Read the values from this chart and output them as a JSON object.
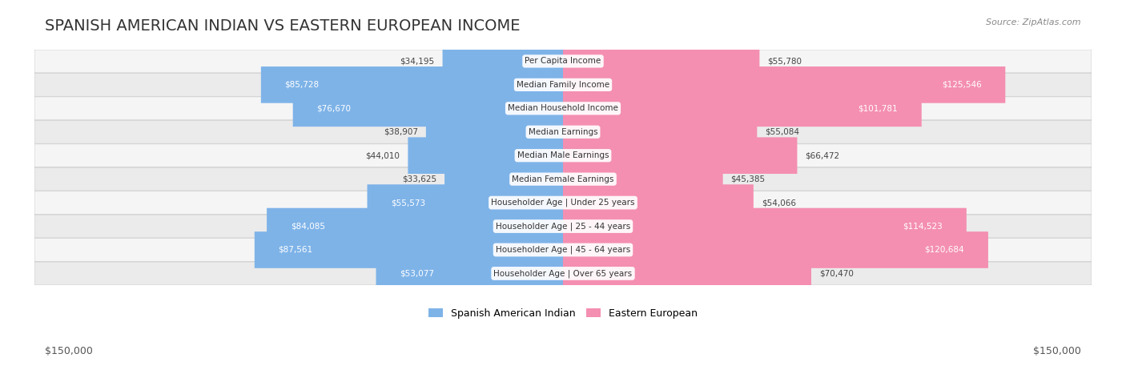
{
  "title": "SPANISH AMERICAN INDIAN VS EASTERN EUROPEAN INCOME",
  "source": "Source: ZipAtlas.com",
  "categories": [
    "Per Capita Income",
    "Median Family Income",
    "Median Household Income",
    "Median Earnings",
    "Median Male Earnings",
    "Median Female Earnings",
    "Householder Age | Under 25 years",
    "Householder Age | 25 - 44 years",
    "Householder Age | 45 - 64 years",
    "Householder Age | Over 65 years"
  ],
  "left_values": [
    34195,
    85728,
    76670,
    38907,
    44010,
    33625,
    55573,
    84085,
    87561,
    53077
  ],
  "right_values": [
    55780,
    125546,
    101781,
    55084,
    66472,
    45385,
    54066,
    114523,
    120684,
    70470
  ],
  "left_labels": [
    "$34,195",
    "$85,728",
    "$76,670",
    "$38,907",
    "$44,010",
    "$33,625",
    "$55,573",
    "$84,085",
    "$87,561",
    "$53,077"
  ],
  "right_labels": [
    "$55,780",
    "$125,546",
    "$101,781",
    "$55,084",
    "$66,472",
    "$45,385",
    "$54,066",
    "$114,523",
    "$120,684",
    "$70,470"
  ],
  "left_color": "#7EB3E8",
  "right_color": "#F48FB1",
  "left_color_dark": "#4A90D9",
  "right_color_dark": "#E91E8C",
  "bar_bg_color": "#F0F0F0",
  "row_bg_odd": "#F5F5F5",
  "row_bg_even": "#EBEBEB",
  "max_value": 150000,
  "legend_left": "Spanish American Indian",
  "legend_right": "Eastern European",
  "title_fontsize": 14,
  "label_fontsize": 9,
  "source_fontsize": 9,
  "axis_label": "$150,000"
}
